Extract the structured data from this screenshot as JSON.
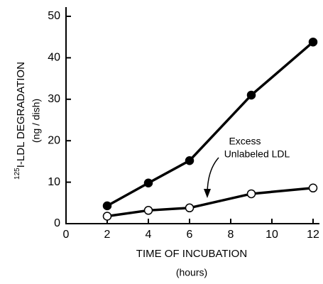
{
  "chart_data": {
    "type": "line",
    "x_label": "TIME OF INCUBATION",
    "x_label_units": "(hours)",
    "y_label": {
      "superscript": "125",
      "text": "I-LDL DEGRADATION"
    },
    "y_label_units": "(ng / dish)",
    "annotation": [
      "Excess",
      "Unlabeled LDL"
    ],
    "xlim": [
      0,
      12
    ],
    "xticks": [
      0,
      2,
      4,
      6,
      8,
      10,
      12
    ],
    "ylim": [
      0,
      50
    ],
    "yticks": [
      0,
      10,
      20,
      30,
      40,
      50
    ],
    "series": [
      {
        "color": "#000000",
        "marker": "filled",
        "x": [
          2,
          4,
          6,
          9,
          12
        ],
        "values": [
          4.3,
          9.8,
          15.2,
          31,
          43.8
        ]
      },
      {
        "color": "#000000",
        "marker": "open",
        "x": [
          2,
          4,
          6,
          9,
          12
        ],
        "values": [
          1.8,
          3.2,
          3.8,
          7.2,
          8.6
        ]
      }
    ]
  }
}
